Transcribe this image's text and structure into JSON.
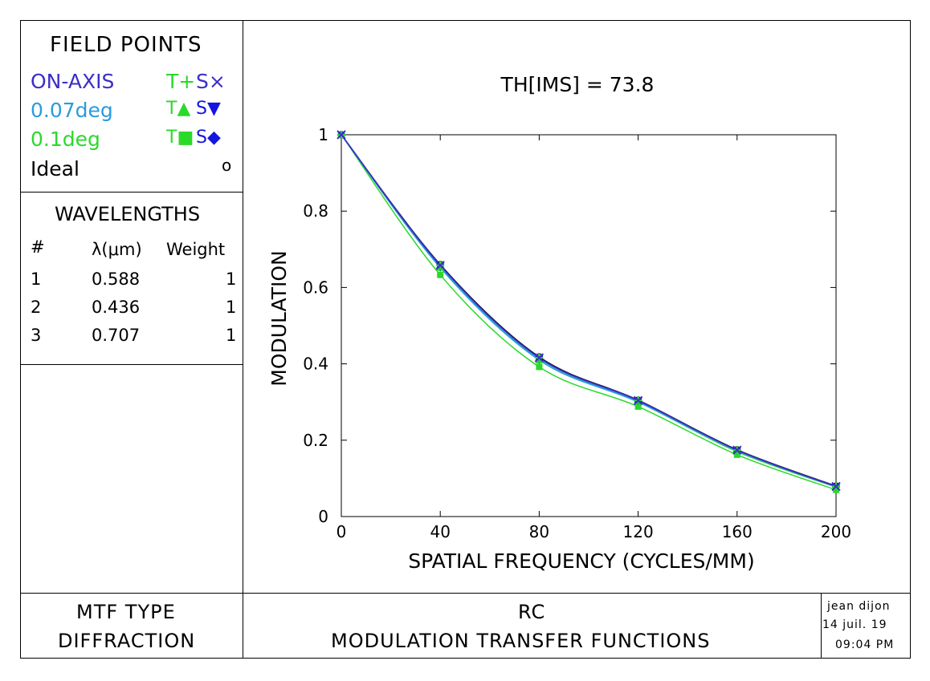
{
  "field_points": {
    "title": "FIELD POINTS",
    "rows": [
      {
        "label": "ON-AXIS",
        "t": "T+",
        "s": "S×",
        "color": "#3b2ec9"
      },
      {
        "label": "0.07deg",
        "t": "T▲",
        "s": "S▼",
        "color": "#2a9bdc"
      },
      {
        "label": "0.1deg",
        "t": "T■",
        "s": "S◆",
        "color": "#2bd92b"
      },
      {
        "label": "Ideal",
        "t": "",
        "s": "o",
        "color": "#000000"
      }
    ]
  },
  "wavelengths": {
    "title": "WAVELENGTHS",
    "headers": [
      "#",
      "λ(μm)",
      "Weight"
    ],
    "rows": [
      [
        "1",
        "0.588",
        "1"
      ],
      [
        "2",
        "0.436",
        "1"
      ],
      [
        "3",
        "0.707",
        "1"
      ]
    ]
  },
  "footer": {
    "mtf_type_label": "MTF TYPE",
    "mtf_type_value": "DIFFRACTION",
    "design_name": "RC",
    "plot_title": "MODULATION TRANSFER FUNCTIONS",
    "user": "jean dijon",
    "date": "14 juil. 19",
    "time": "09:04 PM"
  },
  "chart_data": {
    "type": "line",
    "title": "TH[IMS] = 73.8",
    "xlabel": "SPATIAL FREQUENCY (CYCLES/MM)",
    "ylabel": "MODULATION",
    "xlim": [
      0,
      200
    ],
    "ylim": [
      0,
      1
    ],
    "xticks": [
      0,
      40,
      80,
      120,
      160,
      200
    ],
    "yticks": [
      0,
      0.2,
      0.4,
      0.6,
      0.8,
      1
    ],
    "ytick_labels": [
      "0",
      "0.2",
      "0.4",
      "0.6",
      "0.8",
      "1"
    ],
    "grid": false,
    "x": [
      0,
      40,
      80,
      120,
      160,
      200
    ],
    "series": [
      {
        "name": "Ideal",
        "values": [
          1.0,
          0.66,
          0.418,
          0.305,
          0.175,
          0.08
        ],
        "color": "#000000",
        "marker": "circle"
      },
      {
        "name": "0.1deg S",
        "values": [
          1.0,
          0.652,
          0.41,
          0.3,
          0.17,
          0.077
        ],
        "color": "#2bd92b",
        "marker": "diamond"
      },
      {
        "name": "0.1deg T",
        "values": [
          1.0,
          0.633,
          0.392,
          0.288,
          0.162,
          0.07
        ],
        "color": "#2bd92b",
        "marker": "square"
      },
      {
        "name": "0.07deg T",
        "values": [
          1.0,
          0.652,
          0.41,
          0.3,
          0.172,
          0.078
        ],
        "color": "#2a9bdc",
        "marker": "triangle-up"
      },
      {
        "name": "0.07deg S",
        "values": [
          1.0,
          0.656,
          0.414,
          0.302,
          0.173,
          0.078
        ],
        "color": "#2a9bdc",
        "marker": "triangle-down"
      },
      {
        "name": "ON-AXIS T",
        "values": [
          1.0,
          0.658,
          0.416,
          0.304,
          0.174,
          0.079
        ],
        "color": "#3b2ec9",
        "marker": "plus"
      },
      {
        "name": "ON-AXIS S",
        "values": [
          1.0,
          0.658,
          0.416,
          0.304,
          0.174,
          0.079
        ],
        "color": "#3b2ec9",
        "marker": "cross"
      }
    ]
  }
}
